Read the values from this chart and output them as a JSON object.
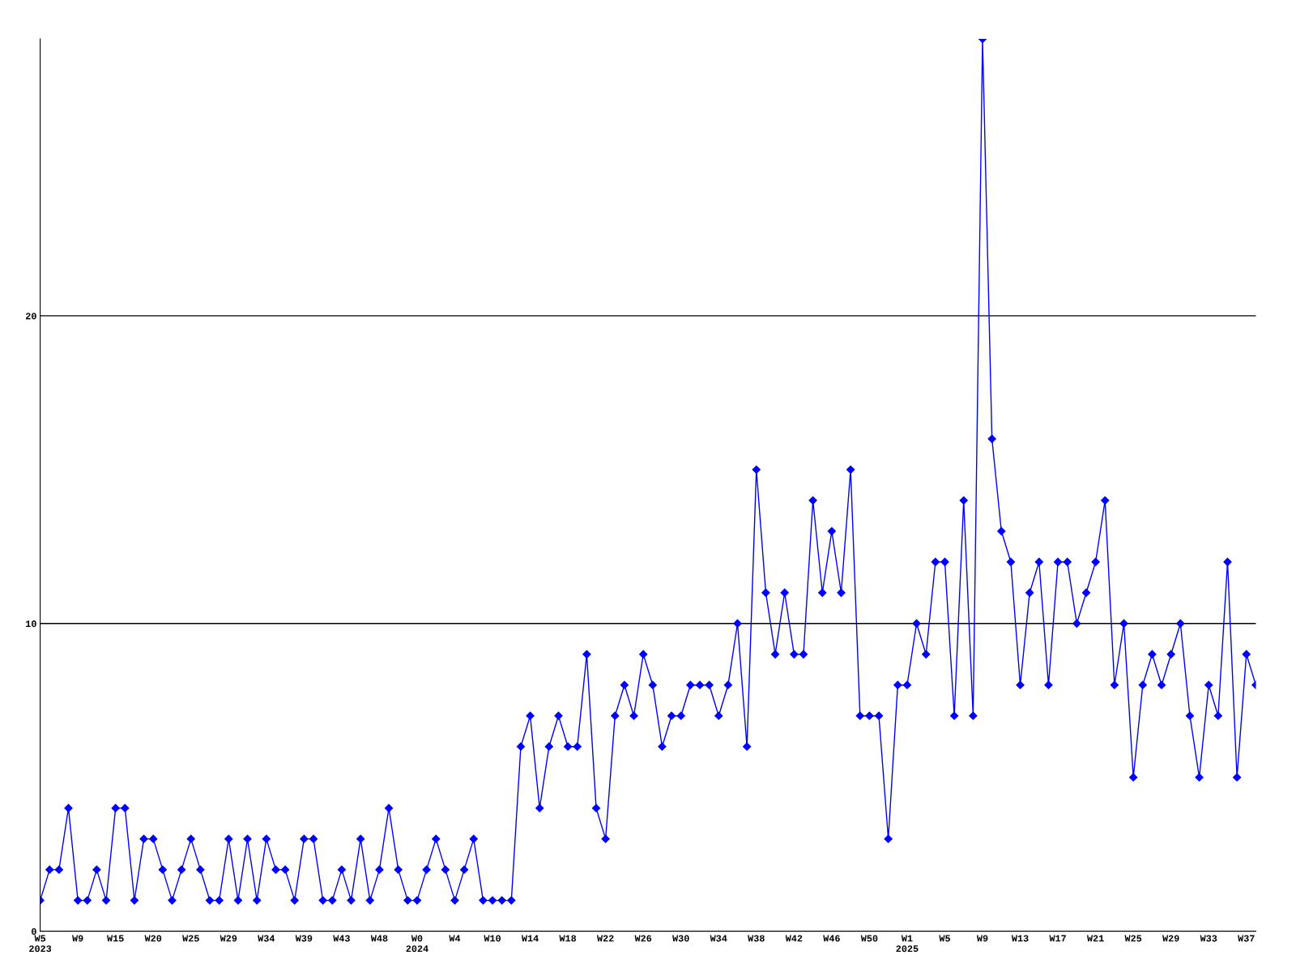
{
  "chart_data": {
    "type": "line",
    "categories": [
      "W5\n2023",
      null,
      null,
      null,
      "W9",
      null,
      null,
      null,
      "W15",
      null,
      null,
      null,
      "W20",
      null,
      null,
      null,
      "W25",
      null,
      null,
      null,
      "W29",
      null,
      null,
      null,
      "W34",
      null,
      null,
      null,
      "W39",
      null,
      null,
      null,
      "W43",
      null,
      null,
      null,
      "W48",
      null,
      null,
      null,
      "W0\n2024",
      null,
      null,
      null,
      "W4",
      null,
      null,
      null,
      "W10",
      null,
      null,
      null,
      "W14",
      null,
      null,
      null,
      "W18",
      null,
      null,
      null,
      "W22",
      null,
      null,
      null,
      "W26",
      null,
      null,
      null,
      "W30",
      null,
      null,
      null,
      "W34",
      null,
      null,
      null,
      "W38",
      null,
      null,
      null,
      "W42",
      null,
      null,
      null,
      "W46",
      null,
      null,
      null,
      "W50",
      null,
      null,
      null,
      "W1\n2025",
      null,
      null,
      null,
      "W5",
      null,
      null,
      null,
      "W9",
      null,
      null,
      null,
      "W13",
      null,
      null,
      null,
      "W17",
      null,
      null,
      null,
      "W21",
      null,
      null,
      null,
      "W25",
      null,
      null,
      null,
      "W29",
      null,
      null,
      null,
      "W33",
      null,
      null,
      null,
      "W37",
      null
    ],
    "series": [
      {
        "color": "#0000ff",
        "values": [
          1,
          2,
          2,
          4,
          1,
          1,
          2,
          1,
          4,
          4,
          1,
          3,
          3,
          2,
          1,
          2,
          3,
          2,
          1,
          1,
          3,
          1,
          3,
          1,
          3,
          2,
          2,
          1,
          3,
          3,
          1,
          1,
          2,
          1,
          3,
          1,
          2,
          4,
          2,
          1,
          1,
          2,
          3,
          2,
          1,
          2,
          3,
          1,
          1,
          1,
          1,
          6,
          7,
          4,
          6,
          7,
          6,
          6,
          9,
          4,
          3,
          7,
          8,
          7,
          9,
          8,
          6,
          7,
          7,
          8,
          8,
          8,
          7,
          8,
          10,
          6,
          15,
          11,
          9,
          11,
          9,
          9,
          14,
          11,
          13,
          11,
          15,
          7,
          7,
          7,
          3,
          8,
          8,
          10,
          9,
          12,
          12,
          7,
          14,
          7,
          29,
          16,
          13,
          12,
          8,
          11,
          12,
          8,
          12,
          12,
          10,
          11,
          12,
          14,
          8,
          10,
          5,
          8,
          9,
          8,
          9,
          10,
          7,
          5,
          8,
          7,
          12,
          5,
          9,
          8
        ]
      }
    ],
    "ylim": [
      0,
      29
    ],
    "yticks": [
      0,
      10,
      20
    ],
    "grid": "y",
    "marker": "diamond",
    "line_style": "solid"
  }
}
